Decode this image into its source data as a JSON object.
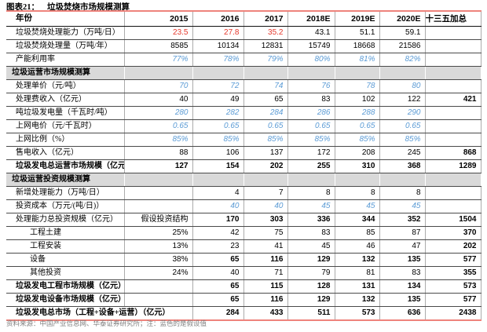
{
  "title": {
    "prefix": "图表21：",
    "text": "垃圾焚烧市场规模测算"
  },
  "footnote": "资料来源：中国产业信息网、华泰证券研究所；注：蓝色的是假设值",
  "colors": {
    "assumption_blue": "#5b9bd5",
    "highlight_red": "#e6392d",
    "section_bg": "#d9d9d9",
    "rule_red": "#ee837c"
  },
  "table": {
    "columns": [
      "年份",
      "2015",
      "2016",
      "2017",
      "2018E",
      "2019E",
      "2020E",
      "十三五加总"
    ],
    "rows": [
      {
        "name": "incineration-capacity",
        "label": "垃圾焚烧处理能力（万吨/日）",
        "labelStyle": "normal",
        "cells": [
          {
            "v": "23.5",
            "s": "red"
          },
          {
            "v": "27.8",
            "s": "red"
          },
          {
            "v": "35.2",
            "s": "red"
          },
          "43.1",
          "51.1",
          "59.1",
          ""
        ]
      },
      {
        "name": "incineration-volume",
        "label": "垃圾焚烧处理量（万吨/年）",
        "labelStyle": "normal",
        "cells": [
          "8585",
          "10134",
          "12831",
          "15749",
          "18668",
          "21586",
          ""
        ]
      },
      {
        "name": "capacity-utilization",
        "label": "产能利用率",
        "labelStyle": "normal",
        "cells": [
          {
            "v": "77%",
            "s": "blue"
          },
          {
            "v": "78%",
            "s": "blue"
          },
          {
            "v": "79%",
            "s": "blue"
          },
          {
            "v": "80%",
            "s": "blue"
          },
          {
            "v": "81%",
            "s": "blue"
          },
          {
            "v": "82%",
            "s": "blue"
          },
          ""
        ]
      },
      {
        "name": "section-operation-market",
        "label": "垃圾运营市场规模测算",
        "section": true
      },
      {
        "name": "treatment-unit-price",
        "label": "处理单价（元/吨）",
        "labelStyle": "normal",
        "cells": [
          {
            "v": "70",
            "s": "blue"
          },
          {
            "v": "72",
            "s": "blue"
          },
          {
            "v": "74",
            "s": "blue"
          },
          {
            "v": "76",
            "s": "blue"
          },
          {
            "v": "78",
            "s": "blue"
          },
          {
            "v": "80",
            "s": "blue"
          },
          ""
        ]
      },
      {
        "name": "treatment-fee-income",
        "label": "处理费收入（亿元）",
        "labelStyle": "normal",
        "cells": [
          "40",
          "49",
          "65",
          "83",
          "102",
          "122",
          {
            "v": "421",
            "s": "bold"
          }
        ]
      },
      {
        "name": "power-per-ton",
        "label": "吨垃圾发电量（千瓦时/吨）",
        "labelStyle": "normal",
        "cells": [
          {
            "v": "280",
            "s": "blue"
          },
          {
            "v": "282",
            "s": "blue"
          },
          {
            "v": "284",
            "s": "blue"
          },
          {
            "v": "286",
            "s": "blue"
          },
          {
            "v": "288",
            "s": "blue"
          },
          {
            "v": "290",
            "s": "blue"
          },
          ""
        ]
      },
      {
        "name": "grid-price",
        "label": "上网电价（元/千瓦时）",
        "labelStyle": "normal",
        "cells": [
          {
            "v": "0.65",
            "s": "blue"
          },
          {
            "v": "0.65",
            "s": "blue"
          },
          {
            "v": "0.65",
            "s": "blue"
          },
          {
            "v": "0.65",
            "s": "blue"
          },
          {
            "v": "0.65",
            "s": "blue"
          },
          {
            "v": "0.65",
            "s": "blue"
          },
          ""
        ]
      },
      {
        "name": "grid-ratio",
        "label": "上网比例（%）",
        "labelStyle": "normal",
        "cells": [
          {
            "v": "85%",
            "s": "blue"
          },
          {
            "v": "85%",
            "s": "blue"
          },
          {
            "v": "85%",
            "s": "blue"
          },
          {
            "v": "85%",
            "s": "blue"
          },
          {
            "v": "85%",
            "s": "blue"
          },
          {
            "v": "85%",
            "s": "blue"
          },
          ""
        ]
      },
      {
        "name": "electricity-sale-income",
        "label": "售电收入（亿元）",
        "labelStyle": "normal",
        "cells": [
          "88",
          "106",
          "137",
          "172",
          "208",
          "245",
          {
            "v": "868",
            "s": "bold"
          }
        ]
      },
      {
        "name": "total-operation-market",
        "label": "垃圾发电总运营市场规模（亿元）",
        "labelStyle": "bold",
        "cells": [
          {
            "v": "127",
            "s": "bold"
          },
          {
            "v": "154",
            "s": "bold"
          },
          {
            "v": "202",
            "s": "bold"
          },
          {
            "v": "255",
            "s": "bold"
          },
          {
            "v": "310",
            "s": "bold"
          },
          {
            "v": "368",
            "s": "bold"
          },
          {
            "v": "1289",
            "s": "bold"
          }
        ]
      },
      {
        "name": "section-investment-market",
        "label": "垃圾运营投资规模测算",
        "section": true
      },
      {
        "name": "new-capacity",
        "label": "新增处理能力（万吨/日）",
        "labelStyle": "normal",
        "cells": [
          "",
          "4",
          "7",
          "8",
          "8",
          "8",
          ""
        ]
      },
      {
        "name": "investment-cost",
        "label": "投资成本（万元/(吨/日)）",
        "labelStyle": "normal",
        "cells": [
          "",
          {
            "v": "40",
            "s": "blue"
          },
          {
            "v": "40",
            "s": "blue"
          },
          {
            "v": "45",
            "s": "blue"
          },
          {
            "v": "45",
            "s": "blue"
          },
          {
            "v": "45",
            "s": "blue"
          },
          ""
        ]
      },
      {
        "name": "total-investment-scale",
        "label": "处理能力总投资规模（亿元）",
        "labelStyle": "normal",
        "cells": [
          {
            "v": "假设投资结构",
            "s": "assume"
          },
          {
            "v": "170",
            "s": "bold"
          },
          {
            "v": "303",
            "s": "bold"
          },
          {
            "v": "336",
            "s": "bold"
          },
          {
            "v": "344",
            "s": "bold"
          },
          {
            "v": "352",
            "s": "bold"
          },
          {
            "v": "1504",
            "s": "bold"
          }
        ]
      },
      {
        "name": "civil-engineering",
        "label": "工程土建",
        "labelStyle": "sub",
        "cells": [
          "25%",
          "42",
          "75",
          "83",
          "85",
          "87",
          {
            "v": "370",
            "s": "bold"
          }
        ]
      },
      {
        "name": "engineering-installation",
        "label": "工程安装",
        "labelStyle": "sub",
        "cells": [
          "13%",
          "23",
          "41",
          "45",
          "46",
          "47",
          {
            "v": "202",
            "s": "bold"
          }
        ]
      },
      {
        "name": "equipment",
        "label": "设备",
        "labelStyle": "sub",
        "cells": [
          "38%",
          {
            "v": "65",
            "s": "bold"
          },
          {
            "v": "116",
            "s": "bold"
          },
          {
            "v": "129",
            "s": "bold"
          },
          {
            "v": "132",
            "s": "bold"
          },
          {
            "v": "135",
            "s": "bold"
          },
          {
            "v": "577",
            "s": "bold"
          }
        ]
      },
      {
        "name": "other-investment",
        "label": "其他投资",
        "labelStyle": "sub",
        "cells": [
          "24%",
          "40",
          "71",
          "79",
          "81",
          "83",
          {
            "v": "355",
            "s": "bold"
          }
        ]
      },
      {
        "name": "engineering-market-scale",
        "label": "垃圾发电工程市场规模（亿元）",
        "labelStyle": "bold",
        "cells": [
          "",
          {
            "v": "65",
            "s": "bold"
          },
          {
            "v": "115",
            "s": "bold"
          },
          {
            "v": "128",
            "s": "bold"
          },
          {
            "v": "131",
            "s": "bold"
          },
          {
            "v": "134",
            "s": "bold"
          },
          {
            "v": "573",
            "s": "bold"
          }
        ]
      },
      {
        "name": "equipment-market-scale",
        "label": "垃圾发电设备市场规模（亿元）",
        "labelStyle": "bold",
        "cells": [
          "",
          {
            "v": "65",
            "s": "bold"
          },
          {
            "v": "116",
            "s": "bold"
          },
          {
            "v": "129",
            "s": "bold"
          },
          {
            "v": "132",
            "s": "bold"
          },
          {
            "v": "135",
            "s": "bold"
          },
          {
            "v": "577",
            "s": "bold"
          }
        ]
      },
      {
        "name": "total-market",
        "label": "垃圾发电总市场（工程+设备+运营）（亿元）",
        "labelStyle": "bold",
        "labelColspan": 2,
        "cells": [
          {
            "v": "284",
            "s": "bold"
          },
          {
            "v": "433",
            "s": "bold"
          },
          {
            "v": "511",
            "s": "bold"
          },
          {
            "v": "573",
            "s": "bold"
          },
          {
            "v": "636",
            "s": "bold"
          },
          {
            "v": "2438",
            "s": "bold"
          }
        ]
      }
    ]
  }
}
